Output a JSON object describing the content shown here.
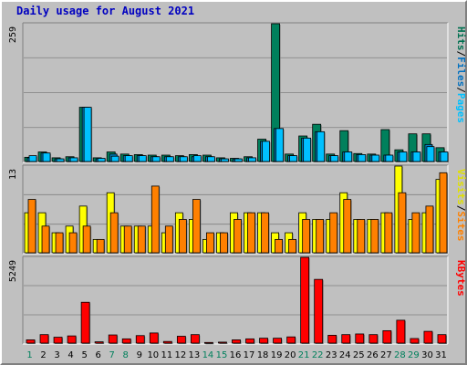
{
  "chart_data": [
    {
      "type": "bar",
      "title": "Daily usage for August 2021",
      "categories": [
        "1",
        "2",
        "3",
        "4",
        "5",
        "6",
        "7",
        "8",
        "9",
        "10",
        "11",
        "12",
        "13",
        "14",
        "15",
        "16",
        "17",
        "18",
        "19",
        "20",
        "21",
        "22",
        "23",
        "24",
        "25",
        "26",
        "27",
        "28",
        "29",
        "30",
        "31"
      ],
      "weekend_days": [
        "1",
        "7",
        "8",
        "14",
        "15",
        "21",
        "22",
        "28",
        "29"
      ],
      "ymax_label": "259",
      "right_labels": [
        {
          "text": "Hits",
          "color": "#007050"
        },
        {
          "text": "/",
          "color": "#000000"
        },
        {
          "text": "Files",
          "color": "#0070c0"
        },
        {
          "text": "/",
          "color": "#000000"
        },
        {
          "text": "Pages",
          "color": "#00c0ff"
        }
      ],
      "series": [
        {
          "name": "Hits",
          "color": "#00805c",
          "values": [
            8,
            18,
            7,
            9,
            102,
            7,
            18,
            14,
            13,
            12,
            12,
            11,
            13,
            12,
            7,
            6,
            9,
            42,
            259,
            14,
            48,
            70,
            14,
            58,
            15,
            14,
            60,
            22,
            52,
            52,
            26
          ]
        },
        {
          "name": "Files",
          "color": "#0080c0",
          "values": [
            7,
            16,
            5,
            7,
            102,
            5,
            14,
            11,
            11,
            9,
            9,
            9,
            9,
            9,
            5,
            5,
            7,
            38,
            62,
            11,
            44,
            56,
            11,
            18,
            13,
            12,
            12,
            18,
            18,
            32,
            18
          ]
        },
        {
          "name": "Pages",
          "color": "#00c0ff",
          "values": [
            11,
            16,
            5,
            7,
            102,
            6,
            10,
            11,
            11,
            9,
            9,
            9,
            11,
            9,
            5,
            5,
            7,
            38,
            62,
            11,
            44,
            56,
            11,
            18,
            13,
            12,
            12,
            18,
            18,
            28,
            18
          ]
        }
      ]
    },
    {
      "type": "bar",
      "ymax_label": "13",
      "right_labels": [
        {
          "text": "Visits",
          "color": "#e0e000"
        },
        {
          "text": "/",
          "color": "#000000"
        },
        {
          "text": "Sites",
          "color": "#ff8000"
        }
      ],
      "series": [
        {
          "name": "Visits",
          "color": "#ffff00",
          "values": [
            6,
            6,
            3,
            4,
            7,
            2,
            9,
            4,
            4,
            4,
            3,
            6,
            5,
            2,
            3,
            6,
            6,
            6,
            3,
            3,
            6,
            5,
            5,
            9,
            5,
            5,
            6,
            13,
            5,
            6,
            11
          ]
        },
        {
          "name": "Sites",
          "color": "#ff8000",
          "values": [
            8,
            4,
            3,
            3,
            4,
            2,
            6,
            4,
            4,
            10,
            4,
            5,
            8,
            3,
            3,
            5,
            6,
            6,
            2,
            2,
            5,
            5,
            6,
            8,
            5,
            5,
            6,
            9,
            6,
            7,
            12
          ]
        }
      ]
    },
    {
      "type": "bar",
      "ymax_label": "5249",
      "right_labels": [
        {
          "text": "KBytes",
          "color": "#ff0000"
        }
      ],
      "series": [
        {
          "name": "KBytes",
          "color": "#ff0000",
          "values": [
            200,
            520,
            360,
            440,
            2500,
            80,
            500,
            260,
            460,
            620,
            100,
            420,
            520,
            40,
            60,
            200,
            260,
            300,
            300,
            380,
            5249,
            3900,
            480,
            520,
            560,
            520,
            760,
            1400,
            280,
            720,
            520
          ]
        }
      ]
    }
  ]
}
